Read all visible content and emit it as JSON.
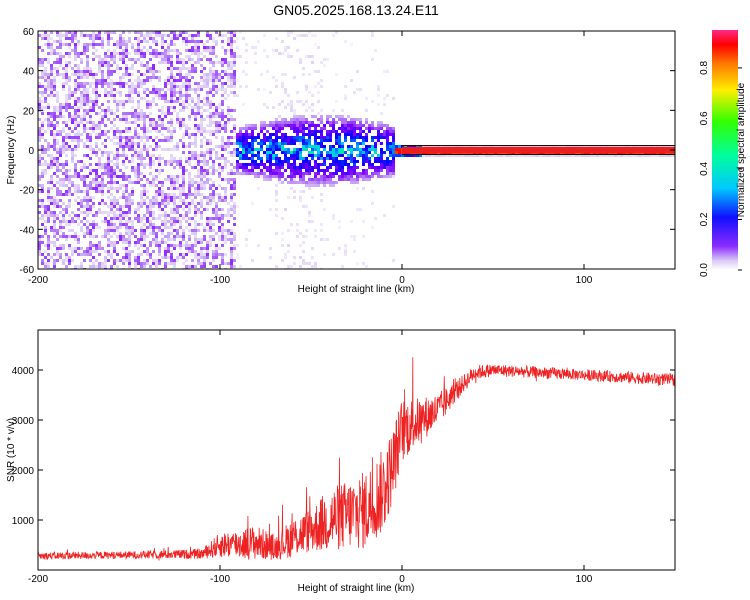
{
  "figure_title": "GN05.2025.168.13.24.E11",
  "chart_data": [
    {
      "type": "heatmap",
      "xlabel": "Height of straight line (km)",
      "ylabel": "Frequency (Hz)",
      "xlim": [
        -200,
        150
      ],
      "ylim": [
        -60,
        60
      ],
      "x_ticks": [
        -200,
        -100,
        0,
        100
      ],
      "x_tick_labels": [
        "-200",
        "-100",
        "0",
        "100"
      ],
      "y_ticks": [
        60,
        40,
        20,
        0,
        -20,
        -40,
        -60
      ],
      "y_tick_labels": [
        "60",
        "40",
        "20",
        "0",
        "-20",
        "-40",
        "-60"
      ],
      "colorbar": {
        "label": "Normalized spectral amplitude",
        "range": [
          0.0,
          0.95
        ],
        "ticks": [
          0.0,
          0.2,
          0.4,
          0.6,
          0.8
        ],
        "tick_labels": [
          "0.0",
          "0.2",
          "0.4",
          "0.6",
          "0.8"
        ],
        "colormap": [
          "#ffffff",
          "#d9c8f5",
          "#7a00ff",
          "#0000ff",
          "#00c8ff",
          "#00ff66",
          "#ffee00",
          "#ff7700",
          "#ff0000",
          "#ff2a8a"
        ]
      },
      "regions": [
        {
          "x": [
            -200,
            -92
          ],
          "freq": [
            -60,
            60
          ],
          "amplitude": 0.12,
          "description_color": "#7a1cff"
        },
        {
          "x": [
            -90,
            -5
          ],
          "freq": [
            -15,
            10
          ],
          "amplitude": 0.3,
          "description_color": "#00c8ff"
        },
        {
          "x": [
            0,
            150
          ],
          "freq": [
            -1.5,
            1.5
          ],
          "amplitude": 0.85,
          "description_color": "#ff0000"
        }
      ]
    },
    {
      "type": "line",
      "xlabel": "Height of straight line (km)",
      "ylabel": "SNR (10 * v/v)",
      "xlim": [
        -200,
        150
      ],
      "ylim": [
        0,
        4800
      ],
      "x_ticks": [
        -200,
        -100,
        0,
        100
      ],
      "x_tick_labels": [
        "-200",
        "-100",
        "0",
        "100"
      ],
      "y_ticks": [
        1000,
        2000,
        3000,
        4000
      ],
      "y_tick_labels": [
        "1000",
        "2000",
        "3000",
        "4000"
      ],
      "color": "#ee2222",
      "envelope": {
        "x": [
          -200,
          -150,
          -110,
          -100,
          -80,
          -70,
          -60,
          -50,
          -40,
          -30,
          -20,
          -10,
          -5,
          0,
          10,
          20,
          30,
          40,
          50,
          100,
          150
        ],
        "mean": [
          280,
          300,
          320,
          500,
          550,
          450,
          650,
          800,
          1000,
          1100,
          1200,
          1600,
          2100,
          2800,
          3000,
          3200,
          3600,
          3950,
          4000,
          3900,
          3800
        ],
        "spread": [
          150,
          150,
          200,
          500,
          700,
          500,
          800,
          900,
          1300,
          1400,
          1600,
          1700,
          1500,
          1300,
          900,
          700,
          400,
          300,
          250,
          220,
          250
        ]
      }
    }
  ]
}
